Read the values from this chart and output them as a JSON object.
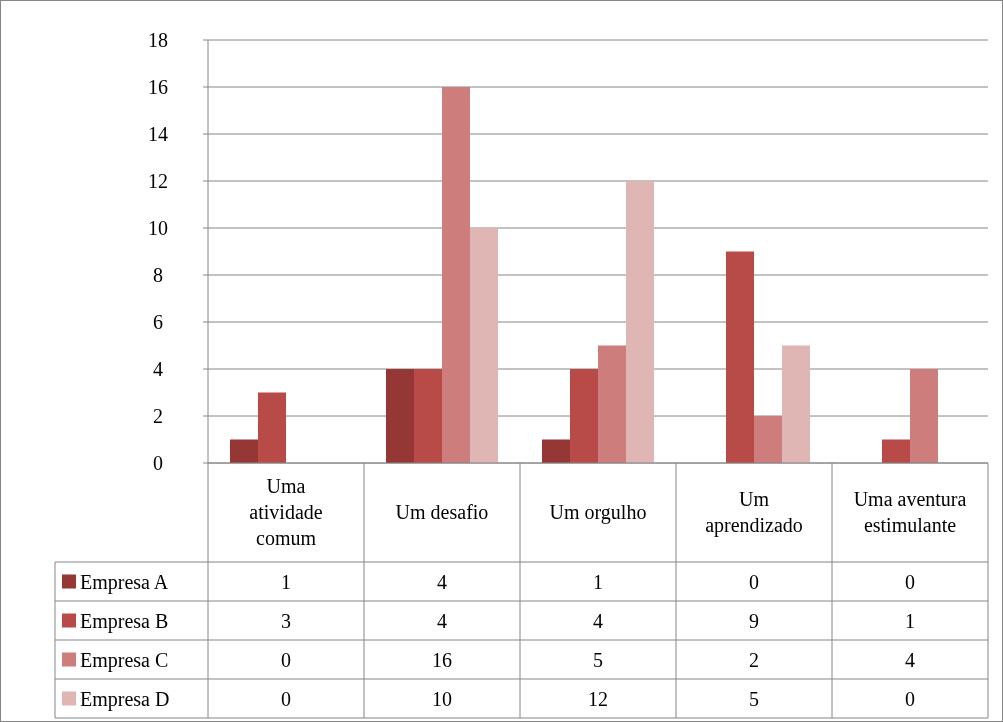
{
  "chart_data": {
    "type": "bar",
    "categories": [
      "Uma atividade comum",
      "Um desafio",
      "Um orgulho",
      "Um aprendizado",
      "Uma aventura estimulante"
    ],
    "series": [
      {
        "name": "Empresa A",
        "color": "#953735",
        "values": [
          1,
          4,
          1,
          0,
          0
        ]
      },
      {
        "name": "Empresa B",
        "color": "#b84b48",
        "values": [
          3,
          4,
          4,
          9,
          1
        ]
      },
      {
        "name": "Empresa C",
        "color": "#cd7d7b",
        "values": [
          0,
          16,
          5,
          2,
          4
        ]
      },
      {
        "name": "Empresa D",
        "color": "#e0b6b5",
        "values": [
          0,
          10,
          12,
          5,
          0
        ]
      }
    ],
    "ylim": [
      0,
      18
    ],
    "yticks": [
      0,
      2,
      4,
      6,
      8,
      10,
      12,
      14,
      16,
      18
    ],
    "grid": "y",
    "legend": "bottom left",
    "data_labels": true
  }
}
